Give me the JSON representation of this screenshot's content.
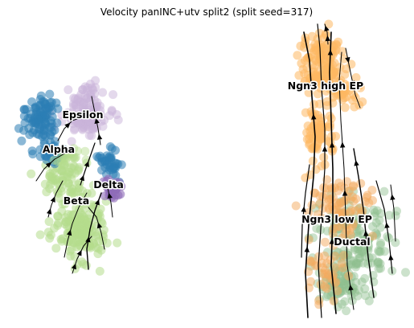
{
  "chart_data": {
    "type": "scatter",
    "title": "Velocity panINC+utv split2 (split seed=317)",
    "xlabel": "",
    "ylabel": "",
    "axes_visible": false,
    "grid": false,
    "legend": "none",
    "overlay": "velocity streamlines with arrowheads",
    "clusters": [
      {
        "name": "Epsilon",
        "color": "#c9b3d9"
      },
      {
        "name": "Alpha",
        "color": "#2b7db5"
      },
      {
        "name": "Delta",
        "color": "#8d6bb8"
      },
      {
        "name": "Beta",
        "color": "#b4dc8c"
      },
      {
        "name": "Ngn3 high EP",
        "color": "#fdb863"
      },
      {
        "name": "Ngn3 low EP",
        "color": "#f4a95e"
      },
      {
        "name": "Ductal",
        "color": "#8fbf8f"
      }
    ]
  }
}
